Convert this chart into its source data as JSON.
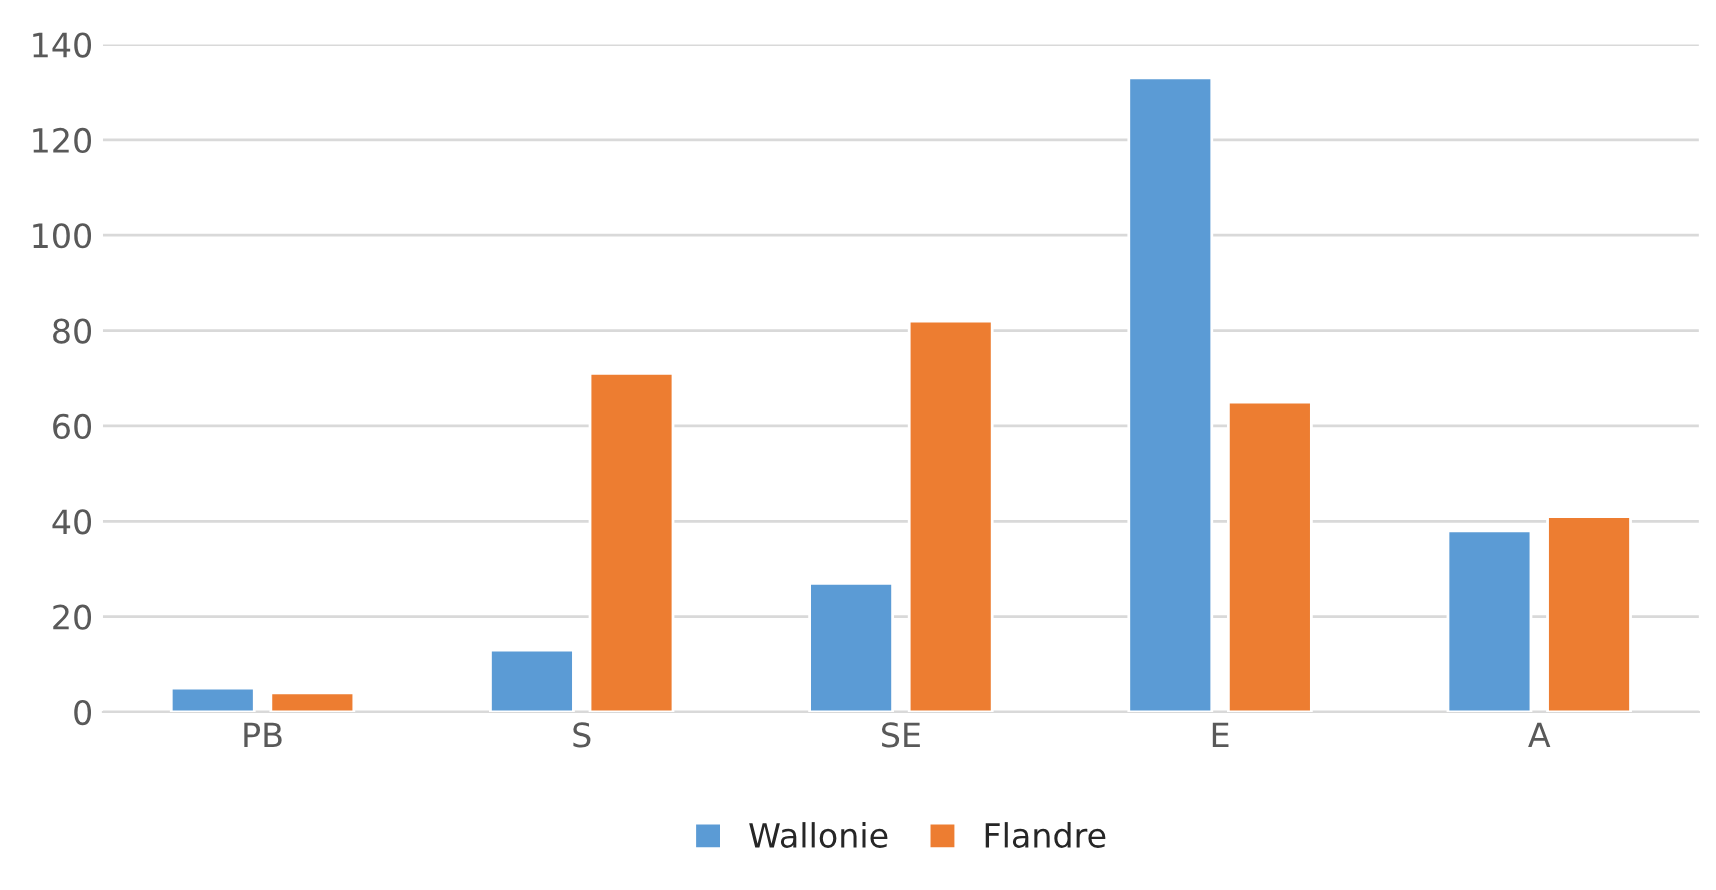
{
  "chart_data": {
    "type": "bar",
    "categories": [
      "PB",
      "S",
      "SE",
      "E",
      "A"
    ],
    "series": [
      {
        "name": "Wallonie",
        "color": "#5b9bd5",
        "values": [
          5,
          13,
          27,
          133,
          38
        ]
      },
      {
        "name": "Flandre",
        "color": "#ed7d31",
        "values": [
          4,
          71,
          82,
          65,
          41
        ]
      }
    ],
    "ylim": [
      0,
      140
    ],
    "yticks": [
      0,
      20,
      40,
      60,
      80,
      100,
      120,
      140
    ],
    "grid": "y",
    "legend": "bottom"
  }
}
